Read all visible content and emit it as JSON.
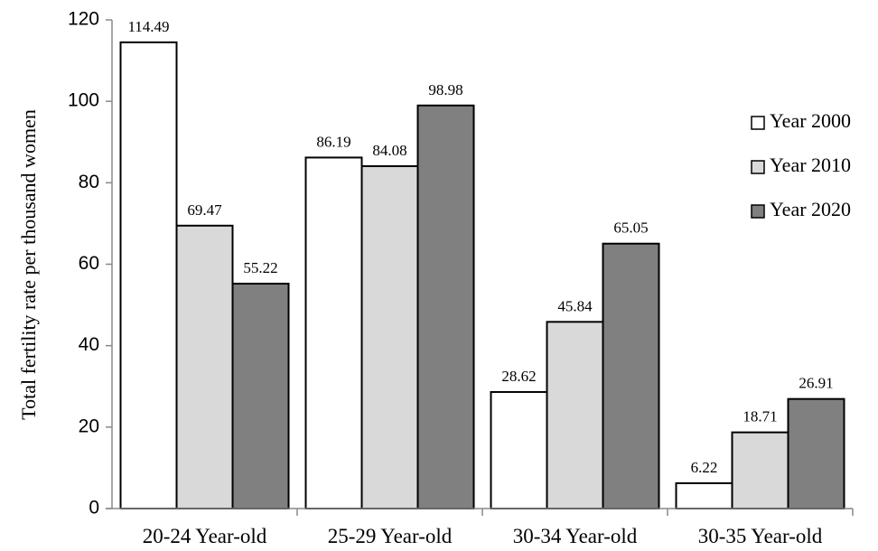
{
  "chart_data": {
    "type": "bar",
    "title": "",
    "xlabel": "",
    "ylabel": "Total fertility rate per thousand  women",
    "ylim": [
      0,
      120
    ],
    "yticks": [
      0,
      20,
      40,
      60,
      80,
      100,
      120
    ],
    "grid": false,
    "legend_position": "right",
    "categories": [
      "20-24 Year-old",
      "25-29 Year-old",
      "30-34 Year-old",
      "30-35 Year-old"
    ],
    "series": [
      {
        "name": "Year 2000",
        "color": "#ffffff",
        "values": [
          114.49,
          86.19,
          28.62,
          6.22
        ],
        "labels": [
          "114.49",
          "86.19",
          "28.62",
          "6.22"
        ]
      },
      {
        "name": "Year 2010",
        "color": "#d9d9d9",
        "values": [
          69.47,
          84.08,
          45.84,
          18.71
        ],
        "labels": [
          "69.47",
          "84.08",
          "45.84",
          "18.71"
        ]
      },
      {
        "name": "Year 2020",
        "color": "#808080",
        "values": [
          55.22,
          98.98,
          65.05,
          26.91
        ],
        "labels": [
          "55.22",
          "98.98",
          "65.05",
          "26.91"
        ]
      }
    ]
  }
}
